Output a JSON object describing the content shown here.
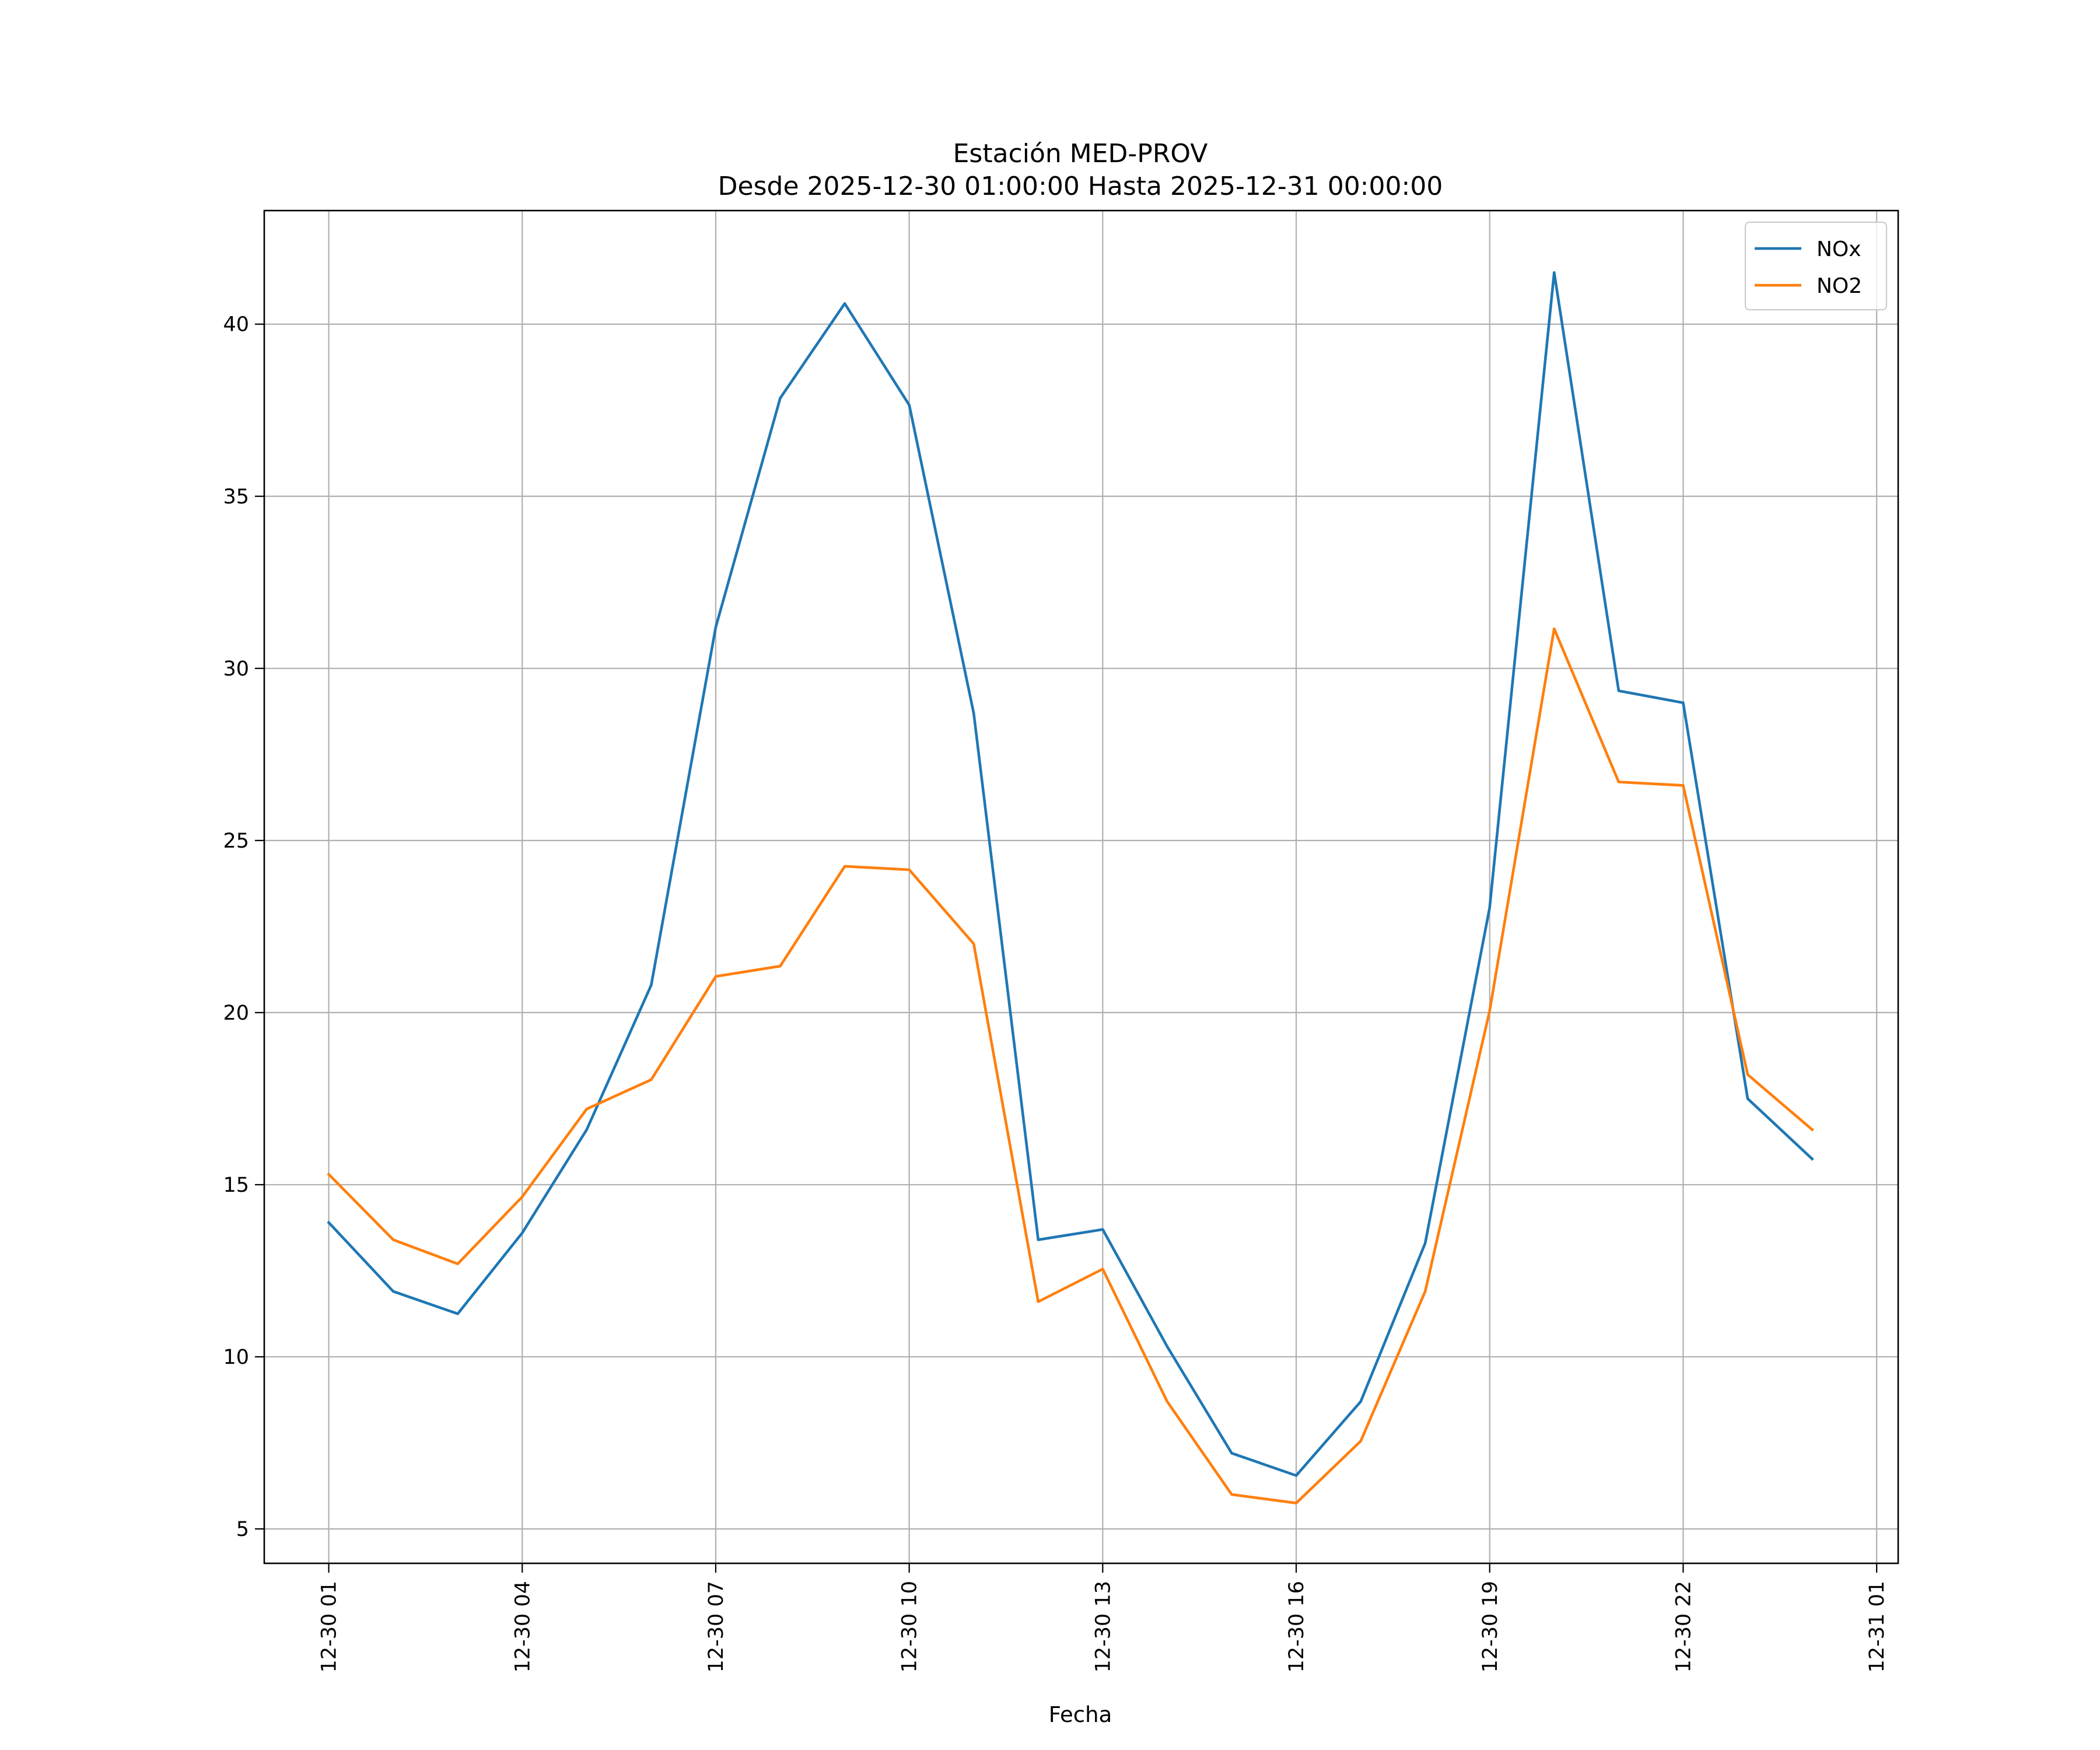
{
  "chart_data": {
    "type": "line",
    "title": "Estación MED-PROV",
    "subtitle": "Desde 2025-12-30 01:00:00 Hasta 2025-12-31 00:00:00",
    "xlabel": "Fecha",
    "ylabel": "",
    "x": [
      "12-30 01",
      "12-30 02",
      "12-30 03",
      "12-30 04",
      "12-30 05",
      "12-30 06",
      "12-30 07",
      "12-30 08",
      "12-30 09",
      "12-30 10",
      "12-30 11",
      "12-30 12",
      "12-30 13",
      "12-30 14",
      "12-30 15",
      "12-30 16",
      "12-30 17",
      "12-30 18",
      "12-30 19",
      "12-30 20",
      "12-30 21",
      "12-30 22",
      "12-30 23",
      "12-31 00"
    ],
    "xlim": [
      "12-30 00:00",
      "12-31 01:20"
    ],
    "x_ticks": [
      "12-30 01",
      "12-30 04",
      "12-30 07",
      "12-30 10",
      "12-30 13",
      "12-30 16",
      "12-30 19",
      "12-30 22",
      "12-31 01"
    ],
    "ylim": [
      4,
      43.3
    ],
    "y_ticks": [
      5,
      10,
      15,
      20,
      25,
      30,
      35,
      40
    ],
    "grid": true,
    "legend": "top-right",
    "series": [
      {
        "name": "NOx",
        "color": "#1f77b4",
        "values": [
          13.9,
          11.9,
          11.25,
          13.6,
          16.6,
          20.8,
          31.2,
          37.85,
          40.6,
          37.65,
          28.7,
          13.4,
          13.7,
          10.3,
          7.2,
          6.55,
          8.7,
          13.3,
          23.05,
          41.5,
          29.35,
          29.0,
          17.5,
          15.75
        ]
      },
      {
        "name": "NO2",
        "color": "#ff7f0e",
        "values": [
          15.3,
          13.4,
          12.7,
          14.65,
          17.2,
          18.05,
          21.05,
          21.35,
          24.25,
          24.15,
          22.0,
          11.6,
          12.55,
          8.7,
          6.0,
          5.75,
          7.55,
          11.9,
          20.05,
          31.15,
          26.7,
          26.6,
          18.2,
          16.6
        ]
      }
    ]
  }
}
